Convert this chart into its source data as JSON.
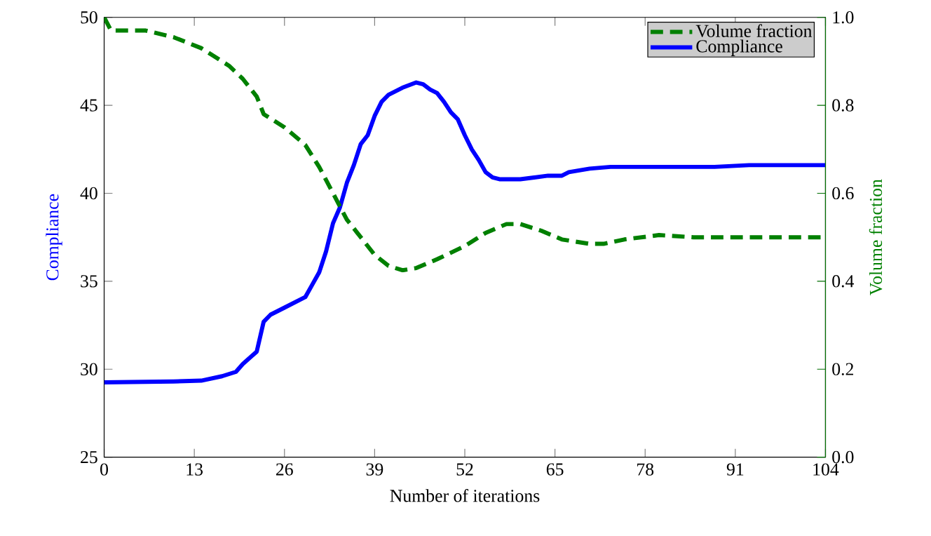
{
  "chart_data": {
    "type": "line",
    "xlabel": "Number of iterations",
    "ylabel": "Compliance",
    "y2label": "Volume fraction",
    "x": [
      0,
      1,
      6,
      10,
      14,
      18,
      20,
      22,
      23,
      26,
      29,
      31,
      33,
      35,
      37,
      39,
      41,
      43,
      45,
      48,
      52,
      55,
      58,
      60,
      63,
      66,
      70,
      72,
      75,
      80,
      85,
      90,
      95,
      104
    ],
    "series": [
      {
        "name": "Volume fraction",
        "color": "#008000",
        "axis": "y2",
        "line_style": "dashed",
        "values": [
          1.0,
          0.97,
          0.97,
          0.955,
          0.93,
          0.89,
          0.86,
          0.82,
          0.78,
          0.75,
          0.71,
          0.66,
          0.6,
          0.54,
          0.5,
          0.46,
          0.435,
          0.425,
          0.43,
          0.45,
          0.48,
          0.51,
          0.53,
          0.53,
          0.515,
          0.495,
          0.485,
          0.485,
          0.495,
          0.505,
          0.5,
          0.5,
          0.5,
          0.5
        ]
      },
      {
        "name": "Compliance",
        "color": "#0000ff",
        "line_style": "solid",
        "x": [
          0,
          10,
          14,
          17,
          19,
          20,
          22,
          23,
          24,
          26,
          29,
          30,
          31,
          32,
          33,
          34,
          35,
          36,
          37,
          38,
          39,
          40,
          41,
          43,
          45,
          46,
          47,
          48,
          49,
          50,
          51,
          52,
          53,
          54,
          55,
          56,
          57,
          60,
          62,
          64,
          66,
          67,
          70,
          73,
          88,
          93,
          104
        ],
        "values": [
          29.25,
          29.3,
          29.35,
          29.6,
          29.85,
          30.3,
          31.0,
          32.7,
          33.1,
          33.5,
          34.1,
          34.8,
          35.5,
          36.7,
          38.3,
          39.2,
          40.6,
          41.6,
          42.8,
          43.3,
          44.4,
          45.2,
          45.6,
          46.0,
          46.3,
          46.2,
          45.9,
          45.7,
          45.2,
          44.6,
          44.2,
          43.3,
          42.5,
          41.9,
          41.2,
          40.9,
          40.8,
          40.8,
          40.9,
          41.0,
          41.0,
          41.2,
          41.4,
          41.5,
          41.5,
          41.6,
          41.6
        ]
      }
    ],
    "xlim": [
      0,
      104
    ],
    "xticks": [
      0,
      13,
      26,
      39,
      52,
      65,
      78,
      91,
      104
    ],
    "ylim": [
      25,
      50
    ],
    "yticks": [
      25,
      30,
      35,
      40,
      45,
      50
    ],
    "y2lim": [
      0,
      1
    ],
    "y2ticks": [
      {
        "value": 0,
        "label": "0.0"
      },
      0.2,
      0.4,
      0.6,
      0.8,
      {
        "value": 1,
        "label": "1.0"
      }
    ],
    "legend": "top right",
    "grid": false
  }
}
